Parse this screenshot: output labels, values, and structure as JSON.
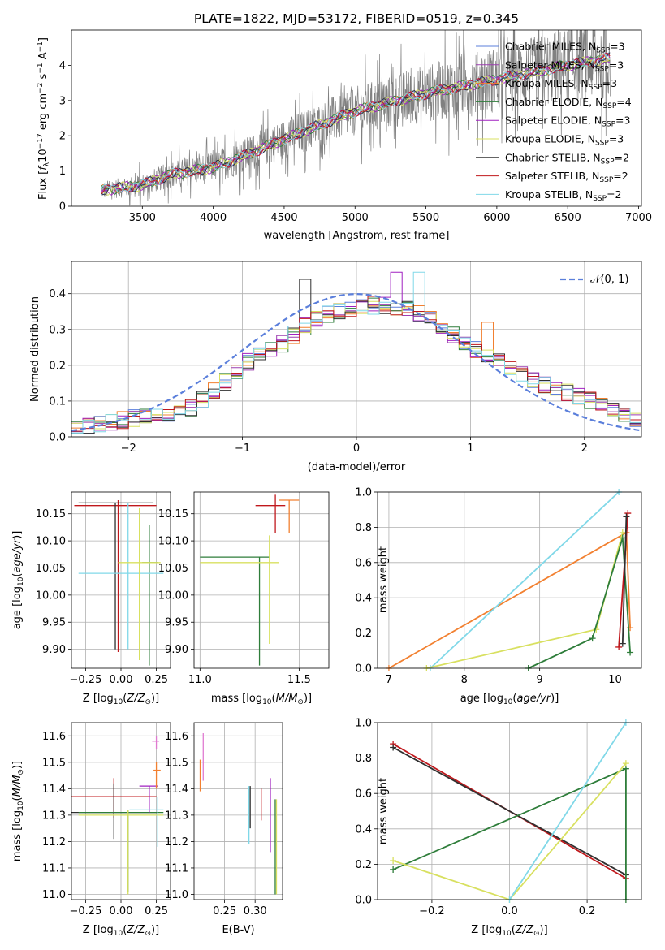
{
  "chart_data": [
    {
      "type": "line",
      "title": "PLATE=1822, MJD=53172, FIBERID=0519, z=0.345",
      "xlabel": "wavelength [Angstrom, rest frame]",
      "ylabel": "Flux [f_λ 10^-17 erg cm^-2 s^-1 A^-1]",
      "xlim": [
        3000,
        7020
      ],
      "ylim": [
        0,
        5
      ],
      "xticks": [
        "3500",
        "4000",
        "4500",
        "5000",
        "5500",
        "6000",
        "6500",
        "7000"
      ],
      "yticks": [
        "0",
        "1",
        "2",
        "3",
        "4"
      ],
      "grid": false,
      "legend_position": "upper-right",
      "data_trend": [
        {
          "x": 3210,
          "y": 0.45
        },
        {
          "x": 3400,
          "y": 0.55
        },
        {
          "x": 3500,
          "y": 0.6
        },
        {
          "x": 3700,
          "y": 0.9
        },
        {
          "x": 4000,
          "y": 1.1
        },
        {
          "x": 4200,
          "y": 1.4
        },
        {
          "x": 4500,
          "y": 1.9
        },
        {
          "x": 5000,
          "y": 2.7
        },
        {
          "x": 5500,
          "y": 3.2
        },
        {
          "x": 6000,
          "y": 3.6
        },
        {
          "x": 6500,
          "y": 4.0
        },
        {
          "x": 6800,
          "y": 4.2
        }
      ],
      "legend": [
        {
          "label": "Chabrier MILES, N",
          "sub": "SSP",
          "suffix": "=3",
          "color": "#5b7fdb"
        },
        {
          "label": "Salpeter MILES, N",
          "sub": "SSP",
          "suffix": "=3",
          "color": "#9c3db0"
        },
        {
          "label": "Kroupa MILES, N",
          "sub": "SSP",
          "suffix": "=3",
          "color": "#f28030"
        },
        {
          "label": "Chabrier ELODIE, N",
          "sub": "SSP",
          "suffix": "=4",
          "color": "#2e7d3a"
        },
        {
          "label": "Salpeter ELODIE, N",
          "sub": "SSP",
          "suffix": "=3",
          "color": "#a020c0"
        },
        {
          "label": "Kroupa ELODIE, N",
          "sub": "SSP",
          "suffix": "=3",
          "color": "#d8e060"
        },
        {
          "label": "Chabrier STELIB, N",
          "sub": "SSP",
          "suffix": "=2",
          "color": "#303030"
        },
        {
          "label": "Salpeter STELIB, N",
          "sub": "SSP",
          "suffix": "=2",
          "color": "#c0181c"
        },
        {
          "label": "Kroupa STELIB, N",
          "sub": "SSP",
          "suffix": "=2",
          "color": "#80d8e8"
        }
      ]
    },
    {
      "type": "line",
      "xlabel": "(data-model)/error",
      "ylabel": "Normed distribution",
      "xlim": [
        -2.5,
        2.5
      ],
      "ylim": [
        0,
        0.49
      ],
      "xticks": [
        "−2",
        "−1",
        "0",
        "1",
        "2"
      ],
      "yticks": [
        "0.0",
        "0.1",
        "0.2",
        "0.3",
        "0.4"
      ],
      "grid": true,
      "legend_position": "upper-right",
      "legend_label": "𝒩(0, 1)",
      "legend_color": "#5b7fdb",
      "histogram_bin_width": 0.1,
      "histogram_profile": [
        {
          "x": -2.45,
          "y": 0.02
        },
        {
          "x": -2.0,
          "y": 0.05
        },
        {
          "x": -1.5,
          "y": 0.07
        },
        {
          "x": -1.2,
          "y": 0.14
        },
        {
          "x": -1.0,
          "y": 0.2
        },
        {
          "x": -0.7,
          "y": 0.25
        },
        {
          "x": -0.4,
          "y": 0.32
        },
        {
          "x": -0.2,
          "y": 0.35
        },
        {
          "x": 0.0,
          "y": 0.36
        },
        {
          "x": 0.2,
          "y": 0.37
        },
        {
          "x": 0.4,
          "y": 0.36
        },
        {
          "x": 0.6,
          "y": 0.34
        },
        {
          "x": 0.8,
          "y": 0.3
        },
        {
          "x": 1.0,
          "y": 0.25
        },
        {
          "x": 1.3,
          "y": 0.2
        },
        {
          "x": 1.6,
          "y": 0.15
        },
        {
          "x": 2.0,
          "y": 0.11
        },
        {
          "x": 2.45,
          "y": 0.05
        }
      ]
    },
    {
      "type": "scatter",
      "xlabel": "Z [log10(Z/Z⊙)]",
      "ylabel": "age  [log10(age/yr)]",
      "xlim": [
        -0.35,
        0.35
      ],
      "ylim": [
        9.865,
        10.19
      ],
      "xticks": [
        "−0.25",
        "0.00",
        "0.25"
      ],
      "yticks": [
        "9.90",
        "9.95",
        "10.00",
        "10.05",
        "10.10",
        "10.15"
      ],
      "grid": true,
      "points": [
        {
          "x": -0.02,
          "y": 10.165,
          "xerr": [
            0.31,
            0.27
          ],
          "yerr": [
            0.27,
            0.01
          ],
          "color": "#c0181c"
        },
        {
          "x": -0.04,
          "y": 10.17,
          "xerr": [
            0.26,
            0.27
          ],
          "yerr": [
            0.27,
            0.0
          ],
          "color": "#303030"
        },
        {
          "x": 0.2,
          "y": 10.06,
          "xerr": [
            0.05,
            0.06
          ],
          "yerr": [
            0.19,
            0.07
          ],
          "color": "#2e7d3a"
        },
        {
          "x": 0.05,
          "y": 10.04,
          "xerr": [
            0.35,
            0.25
          ],
          "yerr": [
            0.14,
            0.13
          ],
          "color": "#80d8e8"
        },
        {
          "x": 0.13,
          "y": 10.06,
          "xerr": [
            0.15,
            0.15
          ],
          "yerr": [
            0.18,
            0.1
          ],
          "color": "#d8e060"
        }
      ]
    },
    {
      "type": "scatter",
      "xlabel": "mass [log10(M/M⊙)]",
      "ylabel": "",
      "xlim": [
        10.97,
        11.65
      ],
      "ylim": [
        9.865,
        10.19
      ],
      "xticks": [
        "11.0",
        "11.5"
      ],
      "yticks": [
        "9.90",
        "9.95",
        "10.00",
        "10.05",
        "10.10",
        "10.15"
      ],
      "grid": true,
      "points": [
        {
          "x": 11.3,
          "y": 10.07,
          "xerr": [
            0.3,
            0.05
          ],
          "yerr": [
            0.2,
            0.0
          ],
          "color": "#2e7d3a"
        },
        {
          "x": 11.35,
          "y": 10.06,
          "xerr": [
            0.35,
            0.05
          ],
          "yerr": [
            0.15,
            0.05
          ],
          "color": "#d8e060"
        },
        {
          "x": 11.38,
          "y": 10.165,
          "xerr": [
            0.1,
            0.05
          ],
          "yerr": [
            0.05,
            0.02
          ],
          "color": "#c0181c"
        },
        {
          "x": 11.45,
          "y": 10.175,
          "xerr": [
            0.05,
            0.05
          ],
          "yerr": [
            0.06,
            0.0
          ],
          "color": "#f28030"
        }
      ]
    },
    {
      "type": "line",
      "xlabel": "age  [log10(age/yr)]",
      "ylabel": "mass weight",
      "xlim": [
        6.85,
        10.35
      ],
      "ylim": [
        0,
        1.0
      ],
      "xticks": [
        "7",
        "8",
        "9",
        "10"
      ],
      "yticks": [
        "0.0",
        "0.2",
        "0.4",
        "0.6",
        "0.8",
        "1.0"
      ],
      "grid": true,
      "series": [
        {
          "color": "#f28030",
          "points": [
            {
              "x": 7.0,
              "y": 0.0
            },
            {
              "x": 10.15,
              "y": 0.77
            },
            {
              "x": 10.2,
              "y": 0.23
            }
          ]
        },
        {
          "color": "#80d8e8",
          "points": [
            {
              "x": 7.55,
              "y": 0.0
            },
            {
              "x": 10.05,
              "y": 1.0
            }
          ]
        },
        {
          "color": "#d8e060",
          "points": [
            {
              "x": 7.5,
              "y": 0.0
            },
            {
              "x": 9.75,
              "y": 0.22
            },
            {
              "x": 10.1,
              "y": 0.77
            }
          ]
        },
        {
          "color": "#2e7d3a",
          "points": [
            {
              "x": 8.85,
              "y": 0.0
            },
            {
              "x": 9.7,
              "y": 0.17
            },
            {
              "x": 10.1,
              "y": 0.74
            },
            {
              "x": 10.2,
              "y": 0.09
            }
          ]
        },
        {
          "color": "#c0181c",
          "points": [
            {
              "x": 10.05,
              "y": 0.12
            },
            {
              "x": 10.17,
              "y": 0.88
            }
          ]
        },
        {
          "color": "#303030",
          "points": [
            {
              "x": 10.1,
              "y": 0.14
            },
            {
              "x": 10.15,
              "y": 0.86
            }
          ]
        }
      ]
    },
    {
      "type": "scatter",
      "xlabel": "Z [log10(Z/Z⊙)]",
      "ylabel": "mass [log10(M/M⊙)]",
      "xlim": [
        -0.35,
        0.35
      ],
      "ylim": [
        10.98,
        11.65
      ],
      "xticks": [
        "−0.25",
        "0.00",
        "0.25"
      ],
      "yticks": [
        "11.0",
        "11.1",
        "11.2",
        "11.3",
        "11.4",
        "11.5",
        "11.6"
      ],
      "grid": true,
      "points": [
        {
          "x": -0.05,
          "y": 11.37,
          "xerr": [
            0.3,
            0.3
          ],
          "yerr": [
            0.08,
            0.07
          ],
          "color": "#c0181c"
        },
        {
          "x": -0.05,
          "y": 11.31,
          "xerr": [
            0.3,
            0.3
          ],
          "yerr": [
            0.1,
            0.11
          ],
          "color": "#303030"
        },
        {
          "x": 0.05,
          "y": 11.31,
          "xerr": [
            0.35,
            0.25
          ],
          "yerr": [
            0.3,
            0.01
          ],
          "color": "#2e7d3a"
        },
        {
          "x": 0.05,
          "y": 11.3,
          "xerr": [
            0.35,
            0.25
          ],
          "yerr": [
            0.3,
            0.02
          ],
          "color": "#d8e060"
        },
        {
          "x": 0.2,
          "y": 11.41,
          "xerr": [
            0.07,
            0.06
          ],
          "yerr": [
            0.1,
            0.0
          ],
          "color": "#a020c0"
        },
        {
          "x": 0.25,
          "y": 11.47,
          "xerr": [
            0.02,
            0.03
          ],
          "yerr": [
            0.07,
            0.03
          ],
          "color": "#f28030"
        },
        {
          "x": 0.25,
          "y": 11.58,
          "xerr": [
            0.03,
            0.02
          ],
          "yerr": [
            0.03,
            0.02
          ],
          "color": "#e07ad0"
        },
        {
          "x": 0.26,
          "y": 11.32,
          "xerr": [
            0.2,
            0.04
          ],
          "yerr": [
            0.14,
            0.05
          ],
          "color": "#80d8e8"
        }
      ]
    },
    {
      "type": "scatter",
      "xlabel": "E(B-V)",
      "ylabel": "",
      "xlim": [
        0.2,
        0.345
      ],
      "ylim": [
        10.98,
        11.65
      ],
      "xticks": [
        "0.25",
        "0.30"
      ],
      "yticks": [
        "11.0",
        "11.1",
        "11.2",
        "11.3",
        "11.4",
        "11.5",
        "11.6"
      ],
      "grid": true,
      "points": [
        {
          "x": 0.21,
          "y": 11.45,
          "xerr": [
            0.0,
            0.0
          ],
          "yerr": [
            0.06,
            0.06
          ],
          "color": "#f28030"
        },
        {
          "x": 0.215,
          "y": 11.52,
          "xerr": [
            0.0,
            0.0
          ],
          "yerr": [
            0.09,
            0.09
          ],
          "color": "#e07ad0"
        },
        {
          "x": 0.29,
          "y": 11.3,
          "xerr": [
            0.0,
            0.0
          ],
          "yerr": [
            0.11,
            0.11
          ],
          "color": "#80d8e8"
        },
        {
          "x": 0.292,
          "y": 11.33,
          "xerr": [
            0.0,
            0.0
          ],
          "yerr": [
            0.08,
            0.08
          ],
          "color": "#303030"
        },
        {
          "x": 0.31,
          "y": 11.34,
          "xerr": [
            0.0,
            0.0
          ],
          "yerr": [
            0.06,
            0.06
          ],
          "color": "#c0181c"
        },
        {
          "x": 0.325,
          "y": 11.3,
          "xerr": [
            0.0,
            0.0
          ],
          "yerr": [
            0.14,
            0.14
          ],
          "color": "#a020c0"
        },
        {
          "x": 0.333,
          "y": 11.18,
          "xerr": [
            0.0,
            0.0
          ],
          "yerr": [
            0.18,
            0.18
          ],
          "color": "#2e7d3a"
        },
        {
          "x": 0.335,
          "y": 11.18,
          "xerr": [
            0.0,
            0.0
          ],
          "yerr": [
            0.18,
            0.18
          ],
          "color": "#d8e060"
        }
      ]
    },
    {
      "type": "line",
      "xlabel": "Z [log10(Z/Z⊙)]",
      "ylabel": "mass weight",
      "xlim": [
        -0.34,
        0.34
      ],
      "ylim": [
        0,
        1.0
      ],
      "xticks": [
        "−0.2",
        "0.0",
        "0.2"
      ],
      "yticks": [
        "0.0",
        "0.2",
        "0.4",
        "0.6",
        "0.8",
        "1.0"
      ],
      "grid": true,
      "series": [
        {
          "color": "#c0181c",
          "points": [
            {
              "x": -0.3,
              "y": 0.88
            },
            {
              "x": 0.3,
              "y": 0.12
            }
          ]
        },
        {
          "color": "#303030",
          "points": [
            {
              "x": -0.3,
              "y": 0.86
            },
            {
              "x": 0.3,
              "y": 0.14
            }
          ]
        },
        {
          "color": "#2e7d3a",
          "points": [
            {
              "x": -0.3,
              "y": 0.17
            },
            {
              "x": 0.3,
              "y": 0.74
            },
            {
              "x": 0.3,
              "y": 0.0
            }
          ]
        },
        {
          "color": "#d8e060",
          "points": [
            {
              "x": -0.3,
              "y": 0.22
            },
            {
              "x": 0.0,
              "y": 0.0
            },
            {
              "x": 0.3,
              "y": 0.77
            }
          ]
        },
        {
          "color": "#80d8e8",
          "points": [
            {
              "x": 0.0,
              "y": 0.0
            },
            {
              "x": 0.3,
              "y": 1.0
            }
          ]
        }
      ]
    }
  ]
}
